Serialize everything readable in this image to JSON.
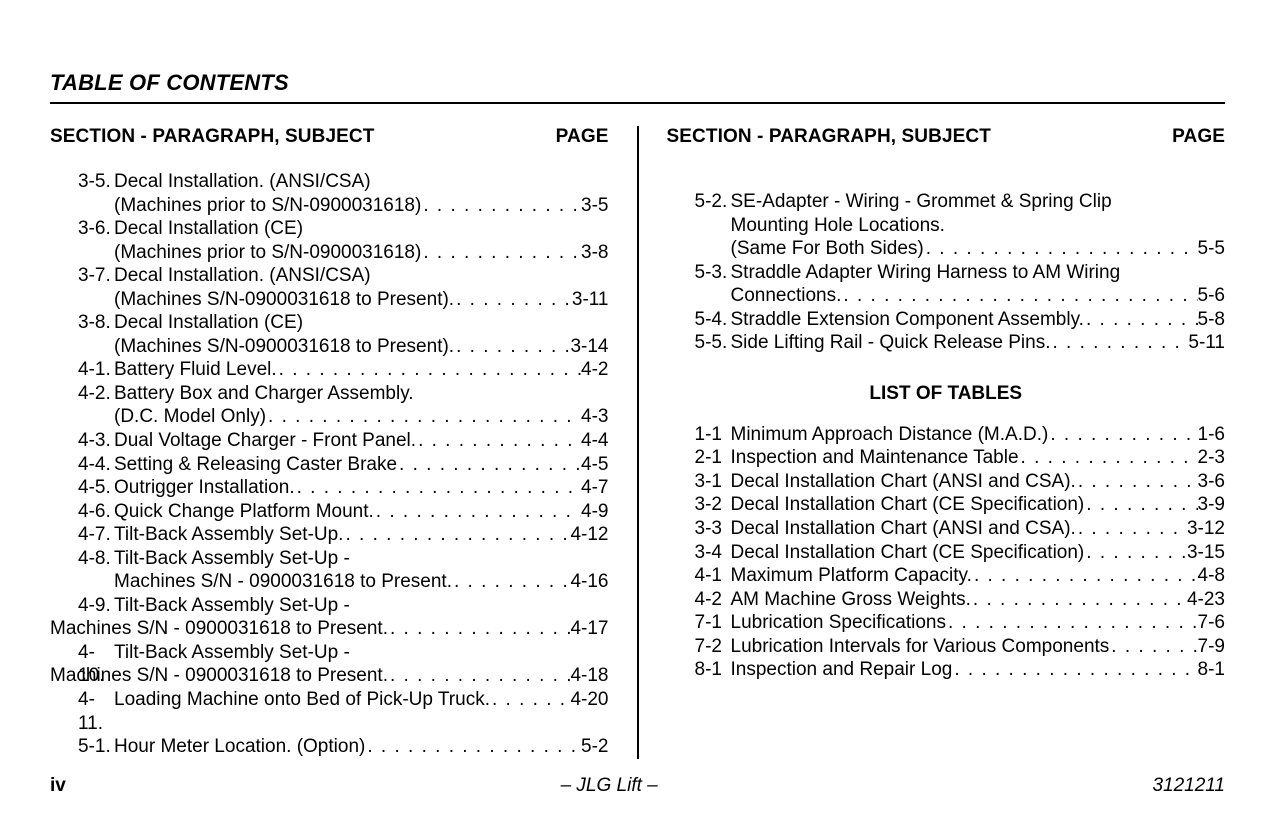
{
  "title": "TABLE OF CONTENTS",
  "col_head_left": "SECTION - PARAGRAPH, SUBJECT",
  "col_head_right": "PAGE",
  "list_of_tables_heading": "LIST OF TABLES",
  "left_entries": [
    {
      "num": "3-5.",
      "line1": "Decal Installation. (ANSI/CSA)",
      "line2": "(Machines prior to S/N-0900031618)",
      "page": "3-5"
    },
    {
      "num": "3-6.",
      "line1": "Decal Installation (CE)",
      "line2": "(Machines prior to S/N-0900031618)",
      "page": "3-8"
    },
    {
      "num": "3-7.",
      "line1": "Decal Installation. (ANSI/CSA)",
      "line2": "(Machines S/N-0900031618 to Present).",
      "page": "3-11"
    },
    {
      "num": "3-8.",
      "line1": "Decal Installation (CE)",
      "line2": "(Machines S/N-0900031618 to Present).",
      "page": "3-14"
    },
    {
      "num": "4-1.",
      "line2": "Battery Fluid Level.",
      "page": "4-2"
    },
    {
      "num": "4-2.",
      "line1": "Battery Box and Charger Assembly.",
      "line2": "(D.C. Model Only)",
      "page": "4-3"
    },
    {
      "num": "4-3.",
      "line2": "Dual Voltage Charger - Front Panel.",
      "page": "4-4"
    },
    {
      "num": "4-4.",
      "line2": "Setting & Releasing Caster Brake",
      "page": "4-5"
    },
    {
      "num": "4-5.",
      "line2": "Outrigger Installation.",
      "page": "4-7"
    },
    {
      "num": "4-6.",
      "line2": "Quick Change Platform Mount.",
      "page": "4-9"
    },
    {
      "num": "4-7.",
      "line2": "Tilt-Back Assembly Set-Up.",
      "page": "4-12"
    },
    {
      "num": "4-8.",
      "line1": "Tilt-Back Assembly Set-Up -",
      "line2": "Machines S/N - 0900031618 to Present.",
      "page": "4-16"
    },
    {
      "num": "4-9.",
      "line1": "Tilt-Back Assembly Set-Up  -",
      "line2_outdent": true,
      "line2": "Machines S/N - 0900031618 to Present.",
      "page": "4-17"
    },
    {
      "num": "4-10.",
      "line1": "Tilt-Back Assembly Set-Up  -",
      "line2_outdent": true,
      "line2": "Machines S/N - 0900031618 to Present.",
      "page": "4-18"
    },
    {
      "num": "4-11.",
      "line2": "Loading Machine onto Bed of Pick-Up Truck.",
      "page": "4-20"
    },
    {
      "num": "5-1.",
      "line2": "Hour Meter Location. (Option)",
      "page": "5-2"
    }
  ],
  "right_entries": [
    {
      "num": "5-2.",
      "line1": "SE-Adapter - Wiring - Grommet & Spring Clip",
      "line1b": "Mounting Hole Locations.",
      "line2": "(Same For Both Sides)",
      "page": "5-5"
    },
    {
      "num": "5-3.",
      "line1": "Straddle Adapter Wiring Harness to AM Wiring",
      "line2": "Connections.",
      "page": "5-6"
    },
    {
      "num": "5-4.",
      "line2": "Straddle Extension Component Assembly.",
      "page": "5-8"
    },
    {
      "num": "5-5.",
      "line2": "Side Lifting Rail - Quick Release Pins.",
      "page": "5-11"
    }
  ],
  "tables": [
    {
      "num": "1-1",
      "line2": "Minimum Approach Distance (M.A.D.)",
      "page": "1-6"
    },
    {
      "num": "2-1",
      "line2": "Inspection and Maintenance Table",
      "page": "2-3"
    },
    {
      "num": "3-1",
      "line2": "Decal Installation Chart  (ANSI and CSA).",
      "page": "3-6"
    },
    {
      "num": "3-2",
      "line2": "Decal Installation Chart  (CE Specification)",
      "page": "3-9"
    },
    {
      "num": "3-3",
      "line2": "Decal Installation Chart  (ANSI and CSA).",
      "page": "3-12"
    },
    {
      "num": "3-4",
      "line2": "Decal Installation Chart  (CE Specification)",
      "page": "3-15"
    },
    {
      "num": "4-1",
      "line2": "Maximum Platform Capacity.",
      "page": "4-8"
    },
    {
      "num": "4-2",
      "line2": "AM Machine Gross Weights.",
      "page": "4-23"
    },
    {
      "num": "7-1",
      "line2": "Lubrication Specifications",
      "page": "7-6"
    },
    {
      "num": "7-2",
      "line2": "Lubrication Intervals for Various Components",
      "page": "7-9"
    },
    {
      "num": "8-1",
      "line2": "Inspection and Repair Log",
      "page": "8-1"
    }
  ],
  "footer": {
    "page_roman": "iv",
    "center": "– JLG Lift –",
    "doc_number": "3121211"
  },
  "dot_fill": ". . . . . . . . . . . . . . . . . . . . . . . . . . . . . . . . . . . . . . . . . . . . . . . . . . . . . . . . . . . . . ."
}
